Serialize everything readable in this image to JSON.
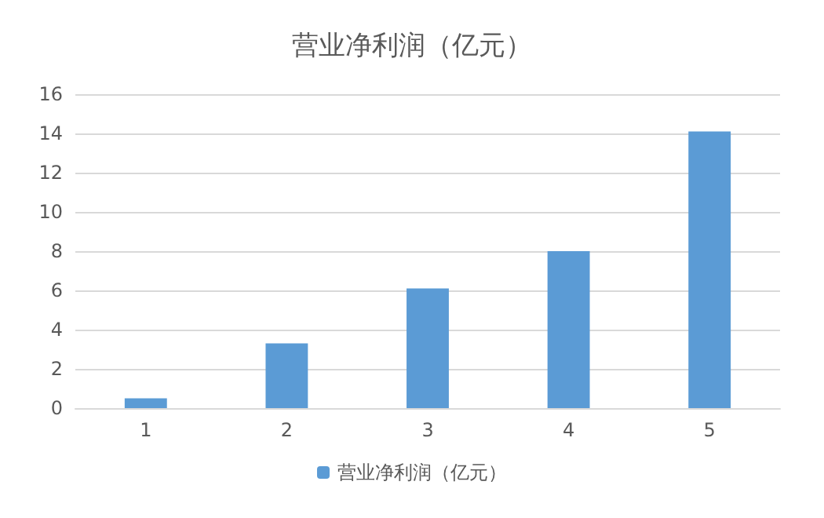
{
  "chart_data": {
    "type": "bar",
    "title": "营业净利润（亿元）",
    "categories": [
      "1",
      "2",
      "3",
      "4",
      "5"
    ],
    "series": [
      {
        "name": "营业净利润（亿元）",
        "color": "#5b9bd5",
        "values": [
          0.5,
          3.3,
          6.1,
          8.0,
          14.1
        ]
      }
    ],
    "ylim": [
      0,
      16
    ],
    "yticks": [
      0,
      2,
      4,
      6,
      8,
      10,
      12,
      14,
      16
    ],
    "grid": "y",
    "legend": "bottom"
  }
}
